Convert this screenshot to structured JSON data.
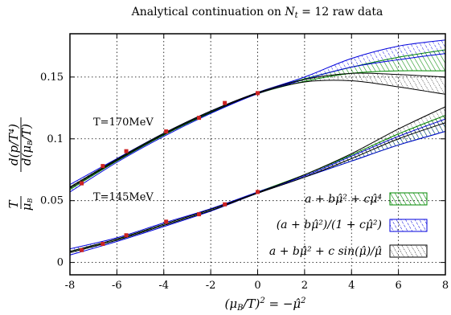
{
  "chart_data": {
    "type": "line",
    "title": "Analytical continuation on N_t = 12 raw data",
    "xlabel": "(μ_B/T)² = −μ̂²",
    "ylabel": "(T/μ_B) d(p/T⁴)/d(μ_B/T)",
    "xlim": [
      -8,
      8
    ],
    "ylim": [
      -0.01,
      0.185
    ],
    "x_ticks": [
      -8,
      -6,
      -4,
      -2,
      0,
      2,
      4,
      6,
      8
    ],
    "x_tick_labels": [
      "-8",
      "-6",
      "-4",
      "-2",
      "0",
      "2",
      "4",
      "6",
      "8"
    ],
    "y_ticks": [
      0,
      0.05,
      0.1,
      0.15
    ],
    "y_tick_labels": [
      "0",
      "0.05",
      "0.1",
      "0.15"
    ],
    "grid": true,
    "annotations": [
      "T=170MeV",
      "T=145MeV"
    ],
    "data_points": [
      {
        "name": "T=170MeV",
        "x": [
          -7.5,
          -6.6,
          -5.6,
          -3.9,
          -2.5,
          -1.4,
          0
        ],
        "y": [
          0.064,
          0.078,
          0.09,
          0.106,
          0.117,
          0.129,
          0.137
        ]
      },
      {
        "name": "T=145MeV",
        "x": [
          -7.5,
          -6.6,
          -5.6,
          -3.9,
          -2.5,
          -1.4,
          0
        ],
        "y": [
          0.01,
          0.015,
          0.022,
          0.033,
          0.039,
          0.047,
          0.057
        ]
      }
    ],
    "series": [
      {
        "name": "a + bμ̂² + cμ̂⁴",
        "color": "#008800",
        "pattern": "hatch-dense",
        "bands": [
          {
            "x": [
              -8,
              -6,
              -4,
              -2,
              0,
              2,
              4,
              6,
              8
            ],
            "lower": [
              0.059,
              0.082,
              0.103,
              0.121,
              0.1365,
              0.1465,
              0.153,
              0.155,
              0.155
            ],
            "upper": [
              0.061,
              0.083,
              0.104,
              0.122,
              0.1375,
              0.1485,
              0.158,
              0.166,
              0.172
            ]
          },
          {
            "x": [
              -8,
              -6,
              -4,
              -2,
              0,
              2,
              4,
              6,
              8
            ],
            "lower": [
              0.008,
              0.018,
              0.03,
              0.042,
              0.056,
              0.069,
              0.082,
              0.095,
              0.106
            ],
            "upper": [
              0.009,
              0.019,
              0.031,
              0.043,
              0.057,
              0.071,
              0.087,
              0.104,
              0.119
            ]
          }
        ]
      },
      {
        "name": "(a + bμ̂²)/(1 + cμ̂²)",
        "color": "#0000dd",
        "pattern": "hatch-dashed",
        "bands": [
          {
            "x": [
              -8,
              -6,
              -4,
              -2,
              0,
              2,
              4,
              6,
              8
            ],
            "lower": [
              0.057,
              0.081,
              0.102,
              0.1205,
              0.1365,
              0.148,
              0.158,
              0.164,
              0.169
            ],
            "upper": [
              0.063,
              0.084,
              0.1045,
              0.1225,
              0.1375,
              0.15,
              0.165,
              0.175,
              0.18
            ]
          },
          {
            "x": [
              -8,
              -6,
              -4,
              -2,
              0,
              2,
              4,
              6,
              8
            ],
            "lower": [
              0.006,
              0.017,
              0.029,
              0.0415,
              0.056,
              0.069,
              0.082,
              0.095,
              0.106
            ],
            "upper": [
              0.011,
              0.02,
              0.032,
              0.0435,
              0.057,
              0.07,
              0.086,
              0.102,
              0.116
            ]
          }
        ]
      },
      {
        "name": "a + bμ̂² + c sin(μ̂)/μ̂",
        "color": "#000000",
        "pattern": "hatch-dotted",
        "bands": [
          {
            "x": [
              -8,
              -6,
              -4,
              -2,
              0,
              2,
              4,
              6,
              8
            ],
            "lower": [
              0.06,
              0.0825,
              0.1035,
              0.1215,
              0.1367,
              0.146,
              0.147,
              0.142,
              0.136
            ],
            "upper": [
              0.061,
              0.0835,
              0.1045,
              0.1225,
              0.1373,
              0.148,
              0.153,
              0.152,
              0.15
            ]
          },
          {
            "x": [
              -8,
              -6,
              -4,
              -2,
              0,
              2,
              4,
              6,
              8
            ],
            "lower": [
              0.008,
              0.018,
              0.03,
              0.042,
              0.056,
              0.069,
              0.084,
              0.1,
              0.113
            ],
            "upper": [
              0.009,
              0.019,
              0.031,
              0.043,
              0.0565,
              0.071,
              0.088,
              0.108,
              0.126
            ]
          }
        ]
      }
    ],
    "legend_position": "bottom-right",
    "legend": [
      "a + bμ̂² + cμ̂⁴",
      "(a + bμ̂²)/(1 + cμ̂²)",
      "a + bμ̂² + c sin(μ̂)/μ̂"
    ],
    "marker_color": "#cc2222"
  }
}
